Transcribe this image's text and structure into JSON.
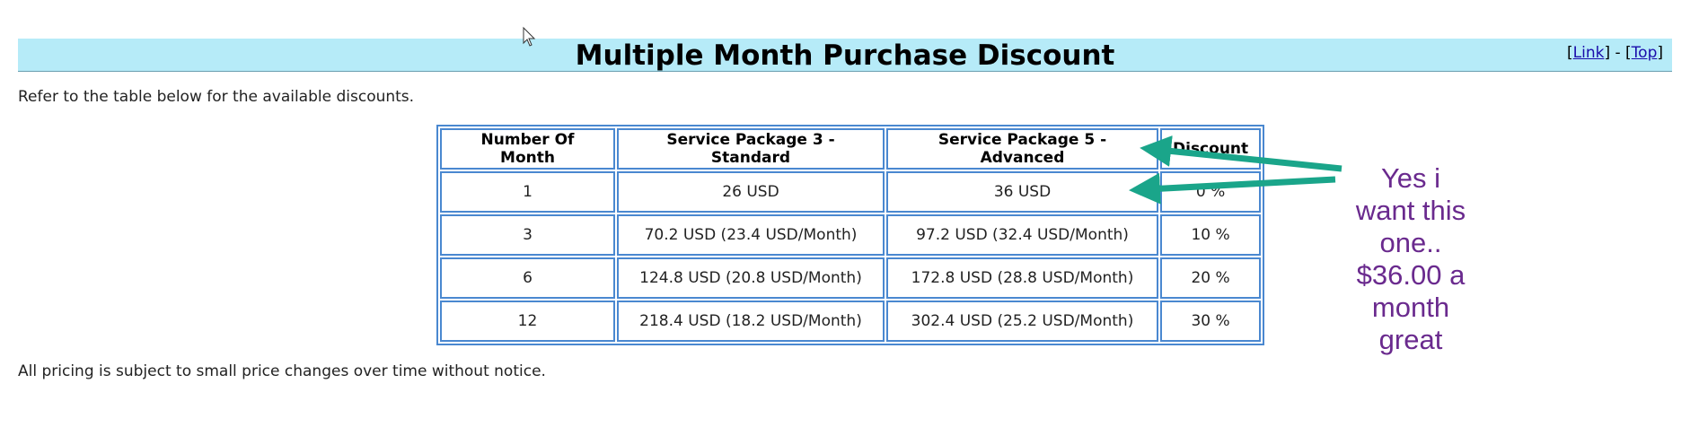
{
  "header": {
    "title": "Multiple Month Purchase Discount",
    "nav": [
      "[",
      "Link",
      "] - [",
      "Top",
      "]"
    ]
  },
  "intro": "Refer to the table below for the available discounts.",
  "table": {
    "columns": [
      "Number Of Month",
      "Service Package 3 - Standard",
      "Service Package 5 - Advanced",
      "Discount"
    ],
    "rows": [
      [
        "1",
        "26 USD",
        "36 USD",
        "0 %"
      ],
      [
        "3",
        "70.2 USD (23.4 USD/Month)",
        "97.2 USD (32.4 USD/Month)",
        "10 %"
      ],
      [
        "6",
        "124.8 USD (20.8 USD/Month)",
        "172.8 USD (28.8 USD/Month)",
        "20 %"
      ],
      [
        "12",
        "218.4 USD (18.2 USD/Month)",
        "302.4 USD (25.2 USD/Month)",
        "30 %"
      ]
    ]
  },
  "footer": "All pricing is subject to small price changes over time without notice.",
  "annotation": [
    "Yes i",
    "want this",
    "one..",
    "$36.00 a",
    "month",
    "great"
  ]
}
